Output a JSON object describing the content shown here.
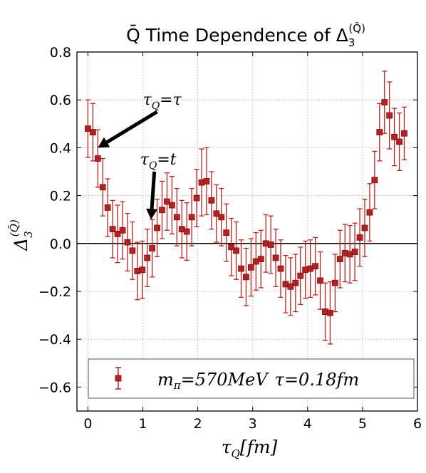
{
  "chart_data": {
    "type": "scatter",
    "title": "Q̄ Time Dependence of Δ3(Q̄)",
    "title_parts": {
      "prefix": "Q̄ Time Dependence of Δ",
      "sub": "3",
      "sup": "(Q̄)"
    },
    "xlabel": "τQ[fm]",
    "ylabel": "Δ3(Q̄)",
    "xlim": [
      -0.2,
      6
    ],
    "ylim": [
      -0.7,
      0.8
    ],
    "xticks": [
      "0",
      "1",
      "2",
      "3",
      "4",
      "5",
      "6"
    ],
    "yticks": [
      "0.8",
      "0.6",
      "0.4",
      "0.2",
      "0.0",
      "−0.2",
      "−0.4",
      "−0.6"
    ],
    "grid": true,
    "legend_position": "bottom",
    "marker_color": "#b22222",
    "errorbar_color": "#b22222",
    "zero_line": true,
    "series": [
      {
        "name": "mπ=570MeV τ=0.18fm",
        "x": [
          0.0,
          0.09,
          0.18,
          0.27,
          0.36,
          0.45,
          0.54,
          0.63,
          0.72,
          0.81,
          0.9,
          0.99,
          1.08,
          1.17,
          1.26,
          1.35,
          1.44,
          1.53,
          1.62,
          1.71,
          1.8,
          1.89,
          1.98,
          2.07,
          2.16,
          2.25,
          2.34,
          2.43,
          2.52,
          2.61,
          2.7,
          2.79,
          2.88,
          2.97,
          3.06,
          3.15,
          3.24,
          3.33,
          3.42,
          3.51,
          3.6,
          3.69,
          3.78,
          3.87,
          3.96,
          4.05,
          4.14,
          4.23,
          4.32,
          4.41,
          4.5,
          4.59,
          4.68,
          4.77,
          4.86,
          4.95,
          5.04,
          5.13,
          5.22,
          5.31,
          5.4,
          5.49,
          5.58,
          5.67,
          5.76
        ],
        "y": [
          0.48,
          0.465,
          0.355,
          0.235,
          0.15,
          0.06,
          0.04,
          0.055,
          0.005,
          -0.03,
          -0.115,
          -0.11,
          -0.06,
          -0.02,
          0.065,
          0.14,
          0.175,
          0.16,
          0.11,
          0.06,
          0.05,
          0.11,
          0.19,
          0.255,
          0.26,
          0.18,
          0.125,
          0.11,
          0.045,
          -0.015,
          -0.03,
          -0.105,
          -0.14,
          -0.1,
          -0.075,
          -0.065,
          0.0,
          -0.005,
          -0.06,
          -0.105,
          -0.17,
          -0.18,
          -0.165,
          -0.135,
          -0.11,
          -0.105,
          -0.095,
          -0.155,
          -0.285,
          -0.29,
          -0.165,
          -0.065,
          -0.04,
          -0.045,
          -0.035,
          0.025,
          0.065,
          0.13,
          0.265,
          0.465,
          0.59,
          0.535,
          0.445,
          0.425,
          0.46
        ],
        "yerr": [
          0.12,
          0.12,
          0.12,
          0.12,
          0.12,
          0.12,
          0.12,
          0.12,
          0.12,
          0.12,
          0.12,
          0.12,
          0.12,
          0.12,
          0.12,
          0.12,
          0.12,
          0.12,
          0.12,
          0.12,
          0.12,
          0.12,
          0.12,
          0.14,
          0.14,
          0.12,
          0.12,
          0.12,
          0.12,
          0.12,
          0.12,
          0.12,
          0.12,
          0.12,
          0.12,
          0.12,
          0.12,
          0.12,
          0.12,
          0.12,
          0.12,
          0.12,
          0.12,
          0.12,
          0.12,
          0.12,
          0.12,
          0.12,
          0.12,
          0.13,
          0.12,
          0.12,
          0.12,
          0.12,
          0.12,
          0.12,
          0.12,
          0.12,
          0.12,
          0.12,
          0.13,
          0.14,
          0.12,
          0.12,
          0.11
        ]
      }
    ],
    "legend_math": {
      "m": "m",
      "m_sub": "π",
      "m_rest": "=570MeV",
      "tau": "τ",
      "tau_rest": "=0.18fm"
    },
    "annotations": [
      {
        "text_main": "τ",
        "text_sub": "Q",
        "text_rest": "=τ",
        "target": [
          0.18,
          0.4
        ],
        "text_at": [
          1.0,
          0.58
        ]
      },
      {
        "text_main": "τ",
        "text_sub": "Q",
        "text_rest": "=t",
        "target": [
          1.15,
          0.1
        ],
        "text_at": [
          0.95,
          0.33
        ]
      }
    ]
  }
}
